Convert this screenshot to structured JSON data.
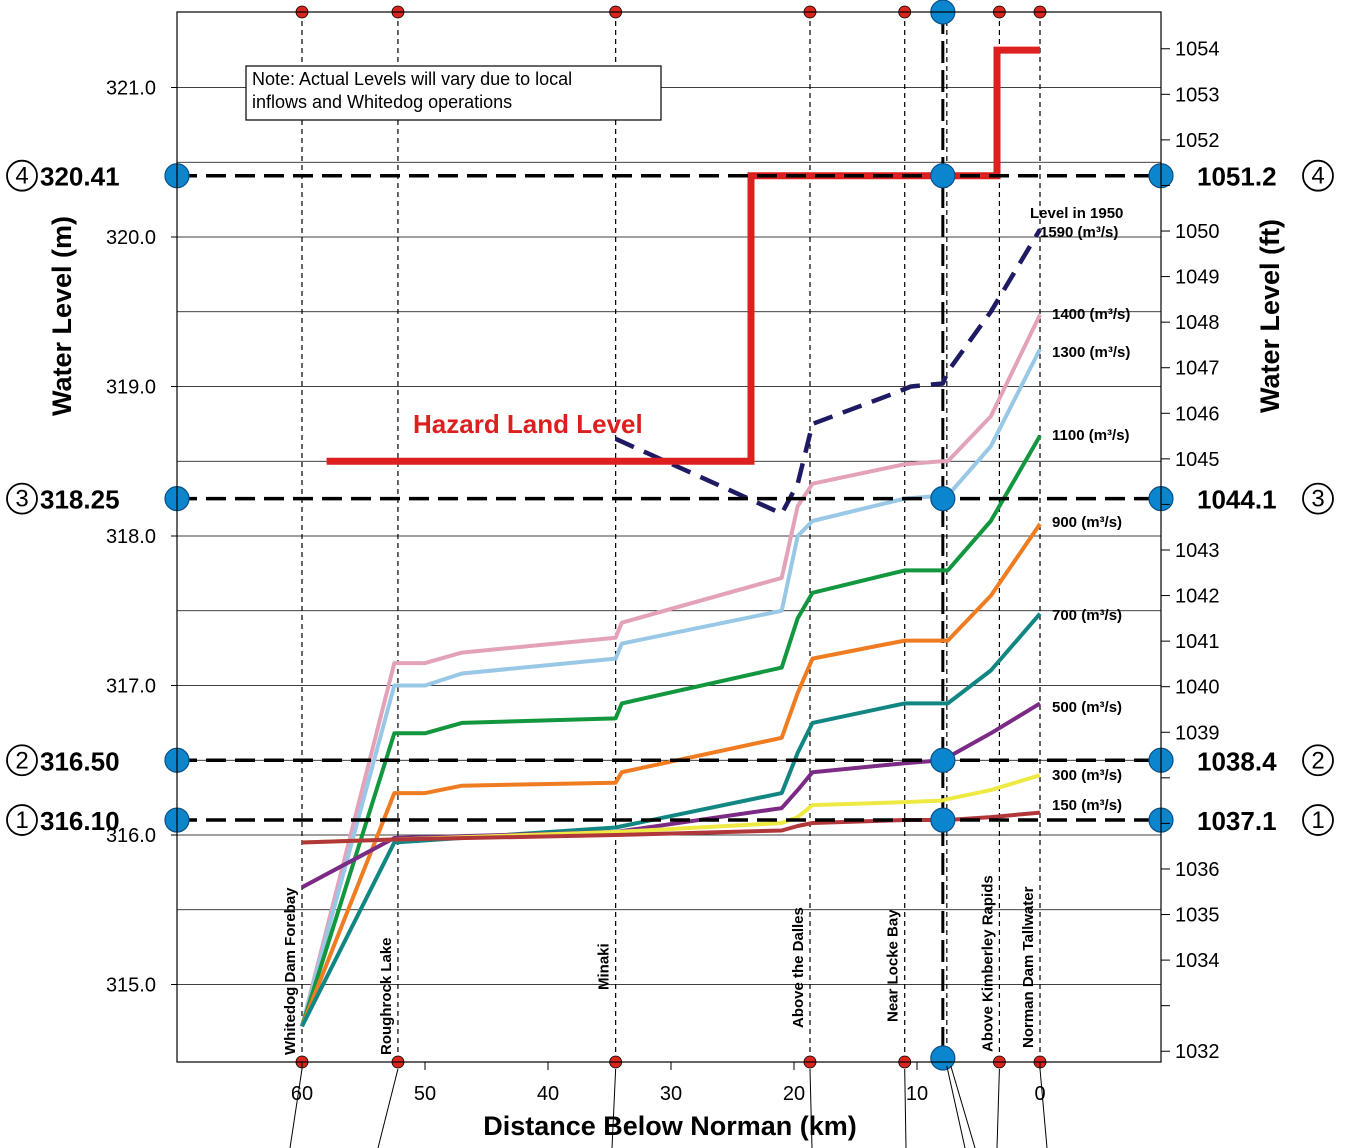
{
  "chart_data": {
    "type": "line",
    "xlabel": "Distance Below Norman (km)",
    "ylabel": "Water Level (m)",
    "y2label": "Water Level (ft)",
    "xlim": [
      75,
      -10
    ],
    "ylim": [
      314.85,
      321.55
    ],
    "x_ticks": [
      60,
      50,
      40,
      30,
      20,
      10,
      0
    ],
    "y_ticks": [
      315.0,
      316.0,
      317.0,
      318.0,
      319.0,
      320.0,
      321.0
    ],
    "y_ticks_labels": [
      "315.0",
      "316.0",
      "317.0",
      "318.0",
      "319.0",
      "320.0",
      "321.0"
    ],
    "y2_ticks": [
      1032,
      1033,
      1034,
      1035,
      1036,
      1037,
      1038,
      1039,
      1040,
      1041,
      1042,
      1043,
      1044,
      1045,
      1046,
      1047,
      1048,
      1049,
      1050,
      1051,
      1052,
      1053,
      1054
    ],
    "y2_ticks_labels": [
      "1032",
      "",
      "1034",
      "1035",
      "1036",
      "",
      "",
      "1039",
      "1040",
      "1041",
      "1042",
      "1043",
      "",
      "1045",
      "1046",
      "1047",
      "1048",
      "1049",
      "1050",
      "",
      "1052",
      "1053",
      "1054"
    ],
    "grid": "horizontal",
    "locations": [
      {
        "name": "Whitedog Dam Forebay",
        "km": 60
      },
      {
        "name": "Roughrock Lake",
        "km": 52.2
      },
      {
        "name": "Minaki",
        "km": 34.5
      },
      {
        "name": "Above the Dalles",
        "km": 18.7
      },
      {
        "name": "Near Locke Bay",
        "km": 11
      },
      {
        "name": "Above Kimberley Rapids",
        "km": 3.3
      },
      {
        "name": "Norman Dam Tallwater",
        "km": 0
      }
    ],
    "key_sites": [
      {
        "km": 7.9
      }
    ],
    "reference_levels": [
      {
        "id": "4",
        "m": 320.41,
        "m_label": "320.41",
        "ft_label": "1051.2"
      },
      {
        "id": "3",
        "m": 318.25,
        "m_label": "318.25",
        "ft_label": "1044.1"
      },
      {
        "id": "2",
        "m": 316.5,
        "m_label": "316.50",
        "ft_label": "1038.4"
      },
      {
        "id": "1",
        "m": 316.1,
        "m_label": "316.10",
        "ft_label": "1037.1"
      }
    ],
    "series": [
      {
        "name": "Level in 1950",
        "label2": "1590 (m³/s)",
        "color": "#1e1a63",
        "dashed": true,
        "x": [
          34.5,
          21,
          19.7,
          18.5,
          12,
          10.5,
          7.9,
          7.5,
          4,
          0
        ],
        "y": [
          318.65,
          318.15,
          318.35,
          318.75,
          318.95,
          319.0,
          319.02,
          319.1,
          319.5,
          320.05
        ]
      },
      {
        "name": "1400 (m³/s)",
        "color": "#e3a2ba",
        "x": [
          60,
          52.5,
          50,
          47,
          34.5,
          34,
          21,
          19.7,
          18.5,
          11,
          8,
          7.5,
          4,
          0
        ],
        "y": [
          314.72,
          317.15,
          317.15,
          317.22,
          317.32,
          317.42,
          317.72,
          318.2,
          318.35,
          318.48,
          318.5,
          318.5,
          318.8,
          319.48
        ]
      },
      {
        "name": "1300 (m³/s)",
        "color": "#98c8e6",
        "x": [
          60,
          52.5,
          50,
          47,
          34.5,
          34,
          21,
          19.7,
          18.5,
          11,
          8,
          7.5,
          4,
          0
        ],
        "y": [
          314.72,
          317.0,
          317.0,
          317.08,
          317.18,
          317.28,
          317.5,
          318.0,
          318.1,
          318.25,
          318.27,
          318.27,
          318.6,
          319.25
        ]
      },
      {
        "name": "1100 (m³/s)",
        "color": "#12973f",
        "x": [
          60,
          52.5,
          50,
          47,
          34.5,
          34,
          21,
          19.7,
          18.5,
          11,
          8,
          7.5,
          4,
          0
        ],
        "y": [
          314.72,
          316.68,
          316.68,
          316.75,
          316.78,
          316.88,
          317.12,
          317.45,
          317.62,
          317.77,
          317.77,
          317.77,
          318.1,
          318.67
        ]
      },
      {
        "name": "900 (m³/s)",
        "color": "#f07c22",
        "x": [
          60,
          52.5,
          50,
          47,
          34.5,
          34,
          21,
          19.7,
          18.5,
          11,
          8,
          7.5,
          4,
          0
        ],
        "y": [
          314.72,
          316.28,
          316.28,
          316.33,
          316.35,
          316.42,
          316.65,
          316.95,
          317.18,
          317.3,
          317.3,
          317.3,
          317.6,
          318.08
        ]
      },
      {
        "name": "700 (m³/s)",
        "color": "#128682",
        "x": [
          60,
          52.5,
          34.5,
          21,
          19.7,
          18.5,
          11,
          8,
          7.5,
          4,
          0
        ],
        "y": [
          314.72,
          315.95,
          316.05,
          316.28,
          316.55,
          316.75,
          316.88,
          316.88,
          316.88,
          317.1,
          317.48
        ]
      },
      {
        "name": "500 (m³/s)",
        "color": "#7b2b86",
        "x": [
          60,
          52.5,
          34.5,
          21,
          19.7,
          18.5,
          11,
          8,
          7.5,
          4,
          0
        ],
        "y": [
          315.65,
          315.98,
          316.02,
          316.18,
          316.3,
          316.42,
          316.48,
          316.5,
          316.52,
          316.68,
          316.88
        ]
      },
      {
        "name": "300 (m³/s)",
        "color": "#eeea43",
        "x": [
          60,
          52.5,
          34.5,
          21,
          19.7,
          18.5,
          11,
          8,
          7.5,
          4,
          0
        ],
        "y": [
          315.95,
          315.97,
          316.02,
          316.08,
          316.12,
          316.2,
          316.22,
          316.23,
          316.24,
          316.3,
          316.4
        ]
      },
      {
        "name": "150 (m³/s)",
        "color": "#b1373b",
        "x": [
          60,
          52.5,
          34.5,
          21,
          19.7,
          18.5,
          11,
          8,
          7.5,
          4,
          0
        ],
        "y": [
          315.95,
          315.97,
          316.0,
          316.03,
          316.06,
          316.08,
          316.1,
          316.1,
          316.1,
          316.12,
          316.15
        ]
      }
    ],
    "hazard_land_level": {
      "label": "Hazard Land Level",
      "color": "#dd1f1f",
      "x": [
        58,
        23.5,
        23.5,
        3.5,
        3.5,
        0
      ],
      "y": [
        318.5,
        318.5,
        320.41,
        320.41,
        321.25,
        321.25
      ]
    },
    "note": {
      "line1": "Note: Actual Levels will vary due to local",
      "line2": "inflows and Whitedog operations"
    }
  }
}
